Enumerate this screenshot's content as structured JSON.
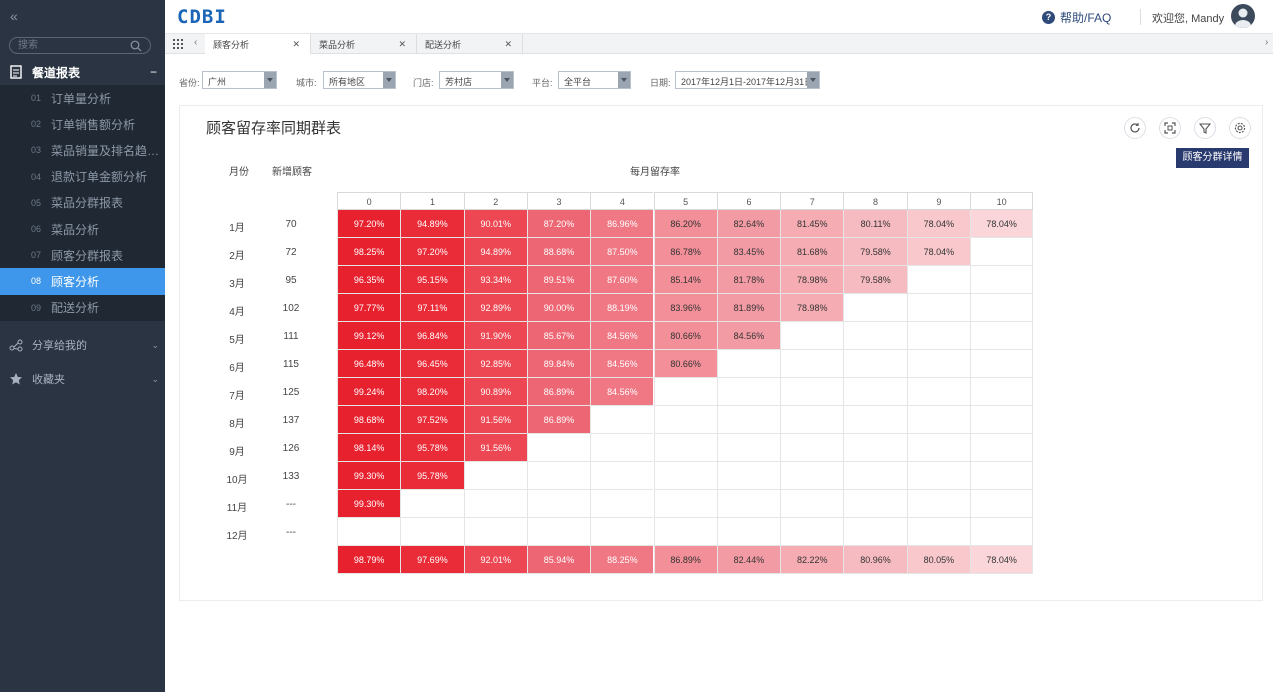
{
  "sidebar": {
    "collapse_glyph": "«",
    "search_placeholder": "搜索",
    "group_title": "餐道报表",
    "group_toggle": "−",
    "items": [
      {
        "num": "01",
        "label": "订单量分析"
      },
      {
        "num": "02",
        "label": "订单销售额分析"
      },
      {
        "num": "03",
        "label": "菜品销量及排名趋…"
      },
      {
        "num": "04",
        "label": "退款订单金额分析"
      },
      {
        "num": "05",
        "label": "菜品分群报表"
      },
      {
        "num": "06",
        "label": "菜品分析"
      },
      {
        "num": "07",
        "label": "顾客分群报表"
      },
      {
        "num": "08",
        "label": "顾客分析"
      },
      {
        "num": "09",
        "label": "配送分析"
      }
    ],
    "active_index": 7,
    "shared_label": "分享给我的",
    "favorites_label": "收藏夹"
  },
  "header": {
    "logo": "CDBI",
    "help": "帮助/FAQ",
    "welcome": "欢迎您, Mandy"
  },
  "tabs": [
    {
      "label": "顾客分析",
      "active": true
    },
    {
      "label": "菜品分析",
      "active": false
    },
    {
      "label": "配送分析",
      "active": false
    }
  ],
  "filters": {
    "province_label": "省份:",
    "province_value": "广州",
    "city_label": "城市:",
    "city_value": "所有地区",
    "store_label": "门店:",
    "store_value": "芳村店",
    "platform_label": "平台:",
    "platform_value": "全平台",
    "date_label": "日期:",
    "date_value": "2017年12月1日-2017年12月31日"
  },
  "panel": {
    "title": "顾客留存率同期群表",
    "detail_button": "顾客分群详情",
    "col_month": "月份",
    "col_new": "新增顾客",
    "col_rate": "每月留存率"
  },
  "chart_data": {
    "type": "heatmap",
    "title": "顾客留存率同期群表",
    "x": [
      "0",
      "1",
      "2",
      "3",
      "4",
      "5",
      "6",
      "7",
      "8",
      "9",
      "10"
    ],
    "rows": [
      {
        "month": "1月",
        "new": "70",
        "values": [
          "97.20%",
          "94.89%",
          "90.01%",
          "87.20%",
          "86.96%",
          "86.20%",
          "82.64%",
          "81.45%",
          "80.11%",
          "78.04%",
          "78.04%"
        ]
      },
      {
        "month": "2月",
        "new": "72",
        "values": [
          "98.25%",
          "97.20%",
          "94.89%",
          "88.68%",
          "87.50%",
          "86.78%",
          "83.45%",
          "81.68%",
          "79.58%",
          "78.04%"
        ]
      },
      {
        "month": "3月",
        "new": "95",
        "values": [
          "96.35%",
          "95.15%",
          "93.34%",
          "89.51%",
          "87.60%",
          "85.14%",
          "81.78%",
          "78.98%",
          "79.58%"
        ]
      },
      {
        "month": "4月",
        "new": "102",
        "values": [
          "97.77%",
          "97.11%",
          "92.89%",
          "90.00%",
          "88.19%",
          "83.96%",
          "81.89%",
          "78.98%"
        ]
      },
      {
        "month": "5月",
        "new": "111",
        "values": [
          "99.12%",
          "96.84%",
          "91.90%",
          "85.67%",
          "84.56%",
          "80.66%",
          "84.56%"
        ]
      },
      {
        "month": "6月",
        "new": "115",
        "values": [
          "96.48%",
          "96.45%",
          "92.85%",
          "89.84%",
          "84.56%",
          "80.66%"
        ]
      },
      {
        "month": "7月",
        "new": "125",
        "values": [
          "99.24%",
          "98.20%",
          "90.89%",
          "86.89%",
          "84.56%"
        ]
      },
      {
        "month": "8月",
        "new": "137",
        "values": [
          "98.68%",
          "97.52%",
          "91.56%",
          "86.89%"
        ]
      },
      {
        "month": "9月",
        "new": "126",
        "values": [
          "98.14%",
          "95.78%",
          "91.56%"
        ]
      },
      {
        "month": "10月",
        "new": "133",
        "values": [
          "99.30%",
          "95.78%"
        ]
      },
      {
        "month": "11月",
        "new": "---",
        "values": [
          "99.30%"
        ]
      },
      {
        "month": "12月",
        "new": "---",
        "values": []
      }
    ],
    "averages": [
      "98.79%",
      "97.69%",
      "92.01%",
      "85.94%",
      "88.25%",
      "86.89%",
      "82.44%",
      "82.22%",
      "80.96%",
      "80.05%",
      "78.04%"
    ],
    "column_colors": [
      "#e8212f",
      "#ea2b38",
      "#ec4753",
      "#ed6673",
      "#ef7884",
      "#f28f98",
      "#f39ba4",
      "#f5acb3",
      "#f6bbc1",
      "#f8c8cc",
      "#fad6da"
    ],
    "text_colors": [
      "#fff",
      "#fff",
      "#fff",
      "#fff",
      "#fff",
      "#333",
      "#333",
      "#333",
      "#333",
      "#333",
      "#333"
    ]
  }
}
